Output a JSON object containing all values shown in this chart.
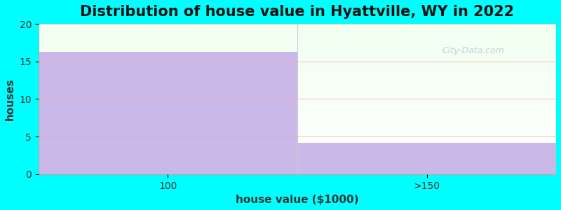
{
  "title": "Distribution of house value in Hyattville, WY in 2022",
  "xlabel": "house value ($1000)",
  "ylabel": "houses",
  "categories": [
    "100",
    ">150"
  ],
  "values": [
    16.3,
    4.2
  ],
  "bar_color": "#C9B8E8",
  "bar_edge_color": "#C9B8E8",
  "ylim": [
    0,
    20
  ],
  "yticks": [
    0,
    5,
    10,
    15,
    20
  ],
  "background_color": "#00FFFF",
  "title_fontsize": 15,
  "axis_label_fontsize": 11,
  "tick_fontsize": 10,
  "watermark_text": "City-Data.com"
}
